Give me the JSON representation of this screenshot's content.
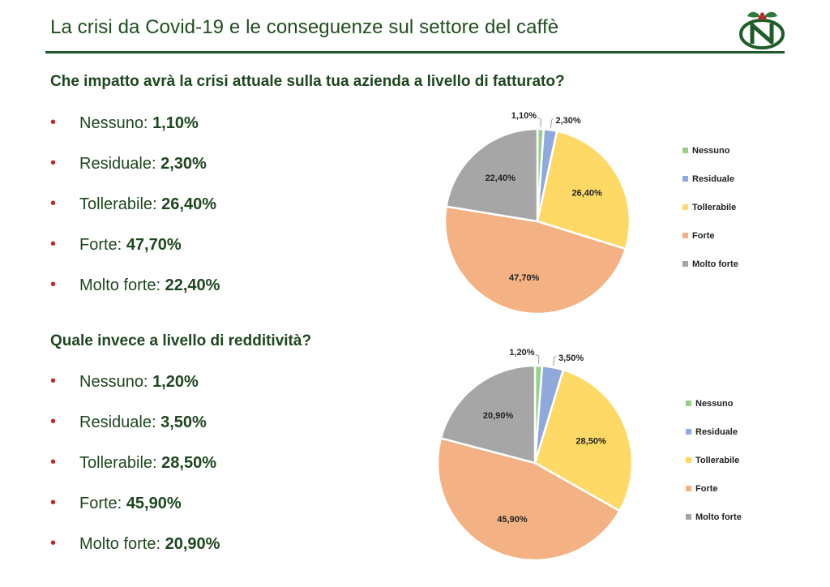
{
  "header": {
    "title": "La crisi da Covid-19 e le conseguenze sul settore del caffè"
  },
  "colors": {
    "accent": "#1f5c2a",
    "bullet": "#c0282d"
  },
  "section1": {
    "question": "Che impatto avrà la crisi attuale sulla tua azienda a livello di fatturato?",
    "items": [
      {
        "label": "Nessuno:",
        "value": "1,10%"
      },
      {
        "label": "Residuale:",
        "value": "2,30%"
      },
      {
        "label": "Tollerabile:",
        "value": "26,40%"
      },
      {
        "label": "Forte:",
        "value": "47,70%"
      },
      {
        "label": "Molto forte:",
        "value": "22,40%"
      }
    ]
  },
  "section2": {
    "question": "Quale invece a livello di redditività?",
    "items": [
      {
        "label": "Nessuno:",
        "value": "1,20%"
      },
      {
        "label": "Residuale:",
        "value": "3,50%"
      },
      {
        "label": "Tollerabile:",
        "value": "28,50%"
      },
      {
        "label": "Forte:",
        "value": "45,90%"
      },
      {
        "label": "Molto forte:",
        "value": "20,90%"
      }
    ]
  },
  "chart_data": [
    {
      "type": "pie",
      "categories": [
        "Nessuno",
        "Residuale",
        "Tollerabile",
        "Forte",
        "Molto forte"
      ],
      "values": [
        1.1,
        2.3,
        26.4,
        47.7,
        22.4
      ],
      "labels": [
        "1,10%",
        "2,30%",
        "26,40%",
        "47,70%",
        "22,40%"
      ],
      "colors": [
        "#9bd08a",
        "#8fa9dc",
        "#ffd966",
        "#f4b183",
        "#a6a6a6"
      ],
      "legend": "right"
    },
    {
      "type": "pie",
      "categories": [
        "Nessuno",
        "Residuale",
        "Tollerabile",
        "Forte",
        "Molto forte"
      ],
      "values": [
        1.2,
        3.5,
        28.5,
        45.9,
        20.9
      ],
      "labels": [
        "1,20%",
        "3,50%",
        "28,50%",
        "45,90%",
        "20,90%"
      ],
      "colors": [
        "#9bd08a",
        "#8fa9dc",
        "#ffd966",
        "#f4b183",
        "#a6a6a6"
      ],
      "legend": "right"
    }
  ]
}
